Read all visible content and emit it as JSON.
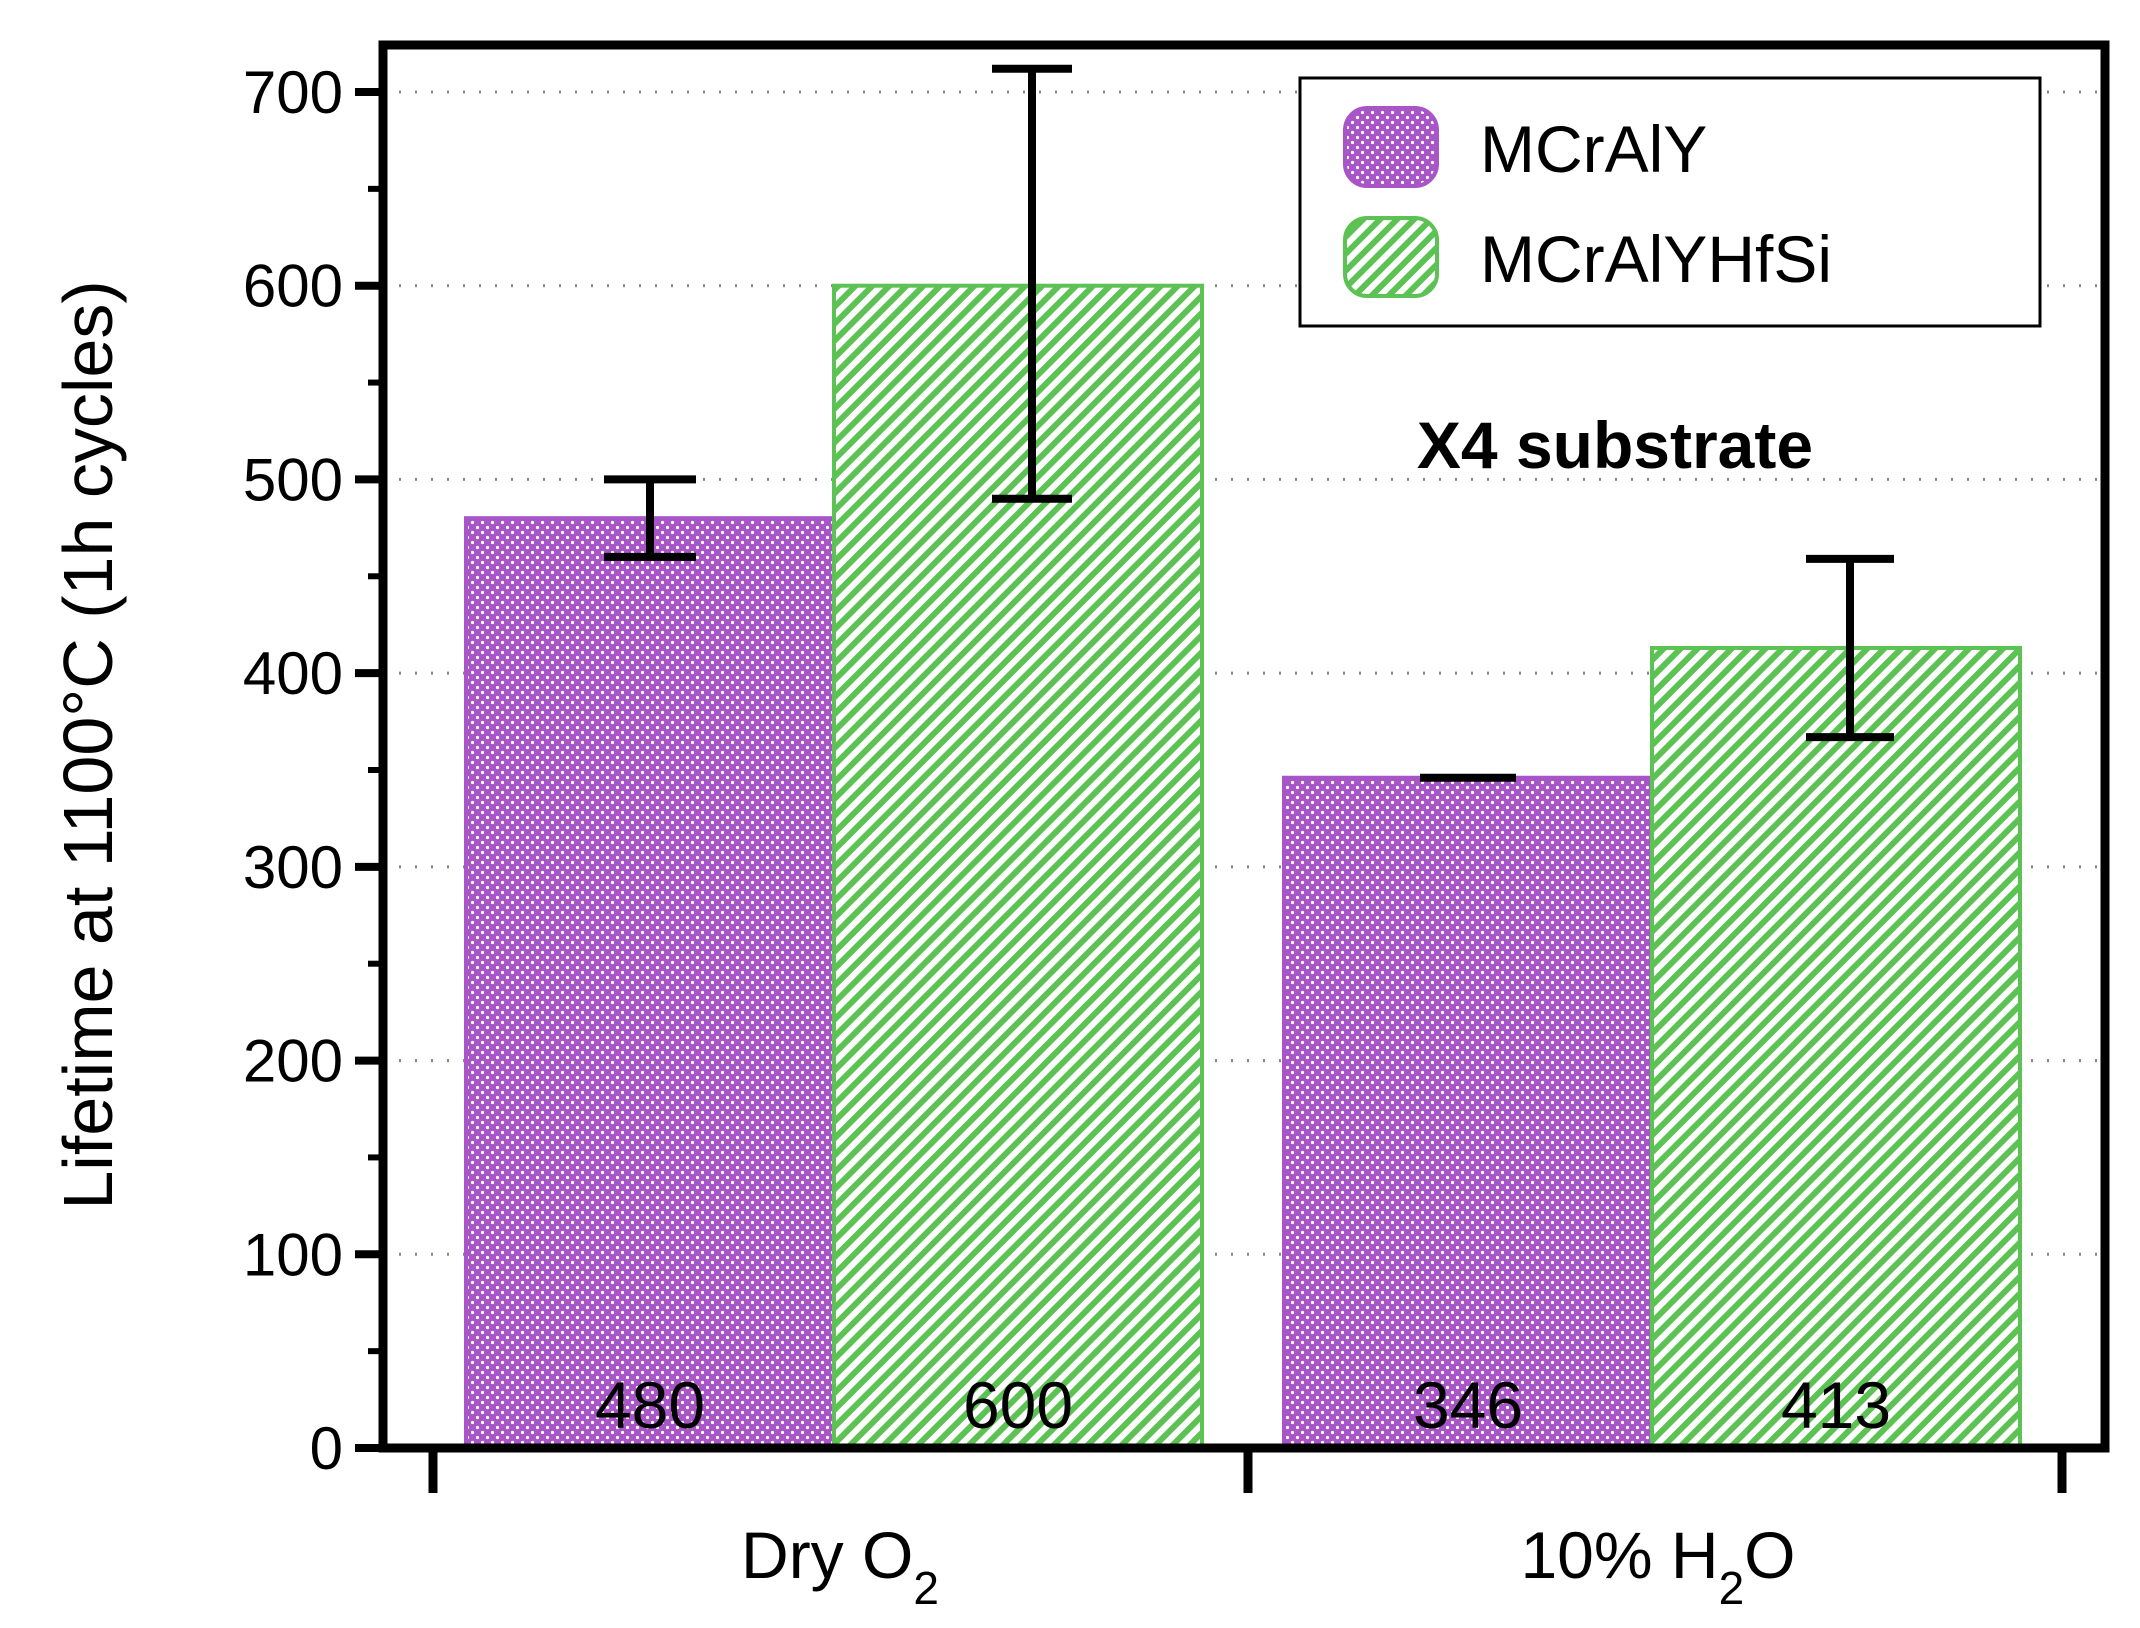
{
  "chart_data": {
    "type": "bar",
    "categories": [
      "Dry O",
      "10% H"
    ],
    "category_subscripts": [
      "2",
      "2"
    ],
    "category_suffixes": [
      "",
      "O"
    ],
    "series": [
      {
        "name": "MCrAlY",
        "values": [
          480,
          346
        ],
        "error_low": [
          460,
          346
        ],
        "error_high": [
          500,
          346
        ],
        "color": "#a855c8",
        "pattern": "dots"
      },
      {
        "name": "MCrAlYHfSi",
        "values": [
          600,
          413
        ],
        "error_low": [
          490,
          367
        ],
        "error_high": [
          712,
          459
        ],
        "color": "#5cc253",
        "pattern": "diagonal-hatch"
      }
    ],
    "bar_labels": [
      "480",
      "600",
      "346",
      "413"
    ],
    "annotation": "X4 substrate",
    "ylabel": "Lifetime at 1100°C (1h cycles)",
    "xlabel": "",
    "ylim": [
      0,
      700
    ],
    "yticks": [
      "0",
      "100",
      "200",
      "300",
      "400",
      "500",
      "600",
      "700"
    ],
    "legend_position": "top-right",
    "grid": "dotted horizontal"
  }
}
